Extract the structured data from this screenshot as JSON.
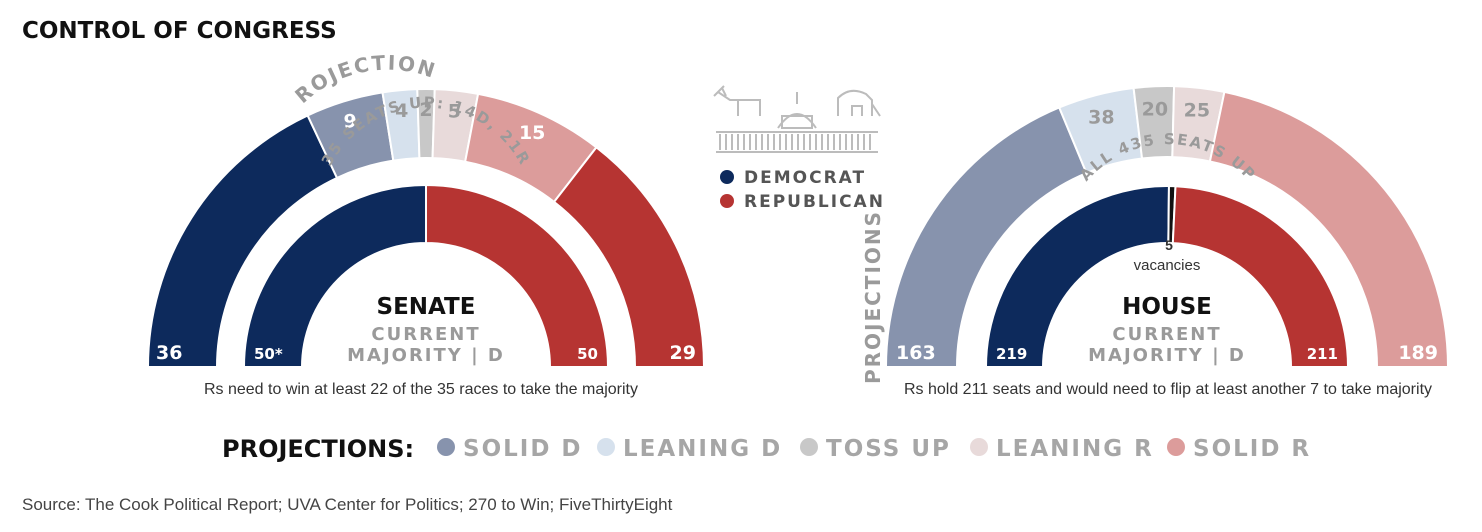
{
  "title": "CONTROL OF CONGRESS",
  "colors": {
    "democrat": "#0d2a5c",
    "republican": "#b63432",
    "solid_d": "#8793ad",
    "leaning_d": "#d6e1ed",
    "toss_up": "#c8c8c8",
    "leaning_r": "#e8dada",
    "solid_r": "#dc9c9b",
    "vacancy": "#111111",
    "muted_text": "#9a9a9a"
  },
  "legend_party": [
    {
      "key": "democrat",
      "label": "DEMOCRAT"
    },
    {
      "key": "republican",
      "label": "REPUBLICAN"
    }
  ],
  "legend_projections": {
    "heading": "PROJECTIONS:",
    "items": [
      {
        "key": "solid_d",
        "label": "SOLID D"
      },
      {
        "key": "leaning_d",
        "label": "LEANING D"
      },
      {
        "key": "toss_up",
        "label": "TOSS UP"
      },
      {
        "key": "leaning_r",
        "label": "LEANING R"
      },
      {
        "key": "solid_r",
        "label": "SOLID R"
      }
    ]
  },
  "icons": [
    "donkey-icon",
    "capitol-icon",
    "elephant-icon"
  ],
  "source": "Source: The Cook Political Report; UVA Center for Politics; 270 to Win; FiveThirtyEight",
  "chart_data": [
    {
      "type": "semicircle",
      "name": "SENATE",
      "status_line1": "CURRENT",
      "status_line2": "MAJORITY | D",
      "outer_caption": "35 SEATS UP: 14D, 21R",
      "projections_label": "PROJECTIONS",
      "outer_ring": [
        {
          "key": "democrat",
          "value": 36,
          "label": "36"
        },
        {
          "key": "solid_d",
          "value": 9,
          "label": "9"
        },
        {
          "key": "leaning_d",
          "value": 4,
          "label": "4"
        },
        {
          "key": "toss_up",
          "value": 2,
          "label": "2"
        },
        {
          "key": "leaning_r",
          "value": 5,
          "label": "5"
        },
        {
          "key": "solid_r",
          "value": 15,
          "label": "15"
        },
        {
          "key": "republican",
          "value": 29,
          "label": "29"
        }
      ],
      "inner_ring": [
        {
          "key": "democrat",
          "value": 50,
          "label": "50*"
        },
        {
          "key": "republican",
          "value": 50,
          "label": "50"
        }
      ],
      "note": "Rs need to win at least 22 of the 35 races to take the majority"
    },
    {
      "type": "semicircle",
      "name": "HOUSE",
      "status_line1": "CURRENT",
      "status_line2": "MAJORITY | D",
      "outer_caption": "ALL 435 SEATS UP",
      "projections_label": "PROJECTIONS",
      "outer_ring": [
        {
          "key": "solid_d",
          "value": 163,
          "label": "163"
        },
        {
          "key": "leaning_d",
          "value": 38,
          "label": "38"
        },
        {
          "key": "toss_up",
          "value": 20,
          "label": "20"
        },
        {
          "key": "leaning_r",
          "value": 25,
          "label": "25"
        },
        {
          "key": "solid_r",
          "value": 189,
          "label": "189"
        }
      ],
      "inner_ring": [
        {
          "key": "democrat",
          "value": 219,
          "label": "219"
        },
        {
          "key": "vacancy",
          "value": 5,
          "label": "5"
        },
        {
          "key": "republican",
          "value": 211,
          "label": "211"
        }
      ],
      "vacancy_label": "vacancies",
      "note": "Rs hold 211 seats and would need to flip at least another 7 to take majority"
    }
  ]
}
